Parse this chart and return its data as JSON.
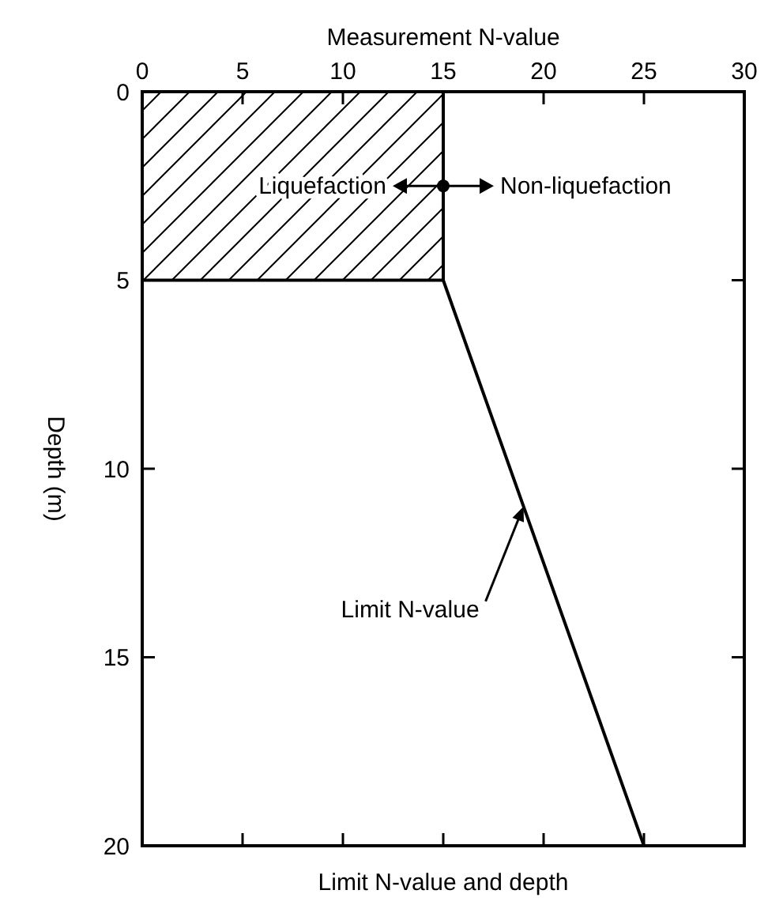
{
  "chart_data": {
    "type": "line",
    "xlabel": "Measurement N-value",
    "ylabel": "Depth (m)",
    "xlim": [
      0,
      30
    ],
    "xticks": [
      0,
      5,
      10,
      15,
      20,
      25,
      30
    ],
    "ylim": [
      20,
      0
    ],
    "yticks": [
      0,
      5,
      10,
      15,
      20
    ],
    "series": [
      {
        "type": "area",
        "color": "#000000",
        "x": [
          0,
          15
        ],
        "values": [
          5,
          5
        ]
      },
      {
        "color": "#000000",
        "x": [
          15,
          15,
          25
        ],
        "values": [
          0,
          5,
          20
        ]
      }
    ],
    "annotations": [
      "Liquefaction",
      "Non-liquefaction",
      {
        "text": "Limit N-value",
        "x": 19,
        "y": 11
      },
      "Limit N-value and depth"
    ],
    "marker": "none",
    "line_style": "solid"
  }
}
